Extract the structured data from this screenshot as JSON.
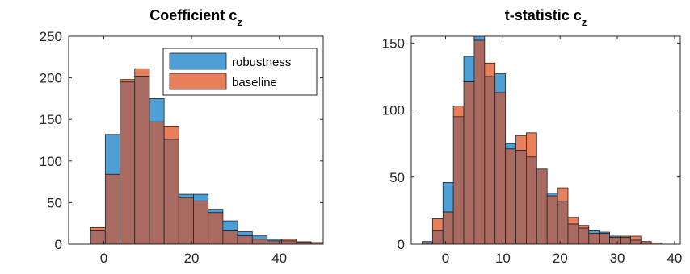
{
  "chart_data": [
    {
      "type": "bar",
      "title": "Coefficient c",
      "title_subscript": "z",
      "xlim": [
        -8,
        50
      ],
      "ylim": [
        0,
        250
      ],
      "xticks": [
        0,
        20,
        40
      ],
      "yticks": [
        0,
        50,
        100,
        150,
        200,
        250
      ],
      "xticklabels": [
        "0",
        "20",
        "40"
      ],
      "yticklabels": [
        "0",
        "50",
        "100",
        "150",
        "200",
        "250"
      ],
      "bin_start": -3,
      "bin_width": 3.35,
      "legend": {
        "position": "top-right",
        "entries": [
          "robustness",
          "baseline"
        ]
      },
      "series": [
        {
          "name": "robustness",
          "color": "#4d9fd6",
          "values": [
            16,
            132,
            195,
            202,
            175,
            126,
            60,
            60,
            42,
            28,
            15,
            10,
            6,
            4,
            2,
            2,
            3,
            3
          ]
        },
        {
          "name": "baseline",
          "color": "#e77f5a",
          "values": [
            20,
            84,
            198,
            211,
            147,
            142,
            56,
            52,
            38,
            16,
            10,
            6,
            4,
            6,
            3,
            2,
            5,
            1
          ]
        }
      ],
      "overlap_color": "#a86a61"
    },
    {
      "type": "bar",
      "title": "t-statistic c",
      "title_subscript": "z",
      "xlim": [
        -6,
        41
      ],
      "ylim": [
        0,
        155
      ],
      "xticks": [
        0,
        10,
        20,
        30,
        40
      ],
      "yticks": [
        0,
        50,
        100,
        150
      ],
      "xticklabels": [
        "0",
        "10",
        "20",
        "30",
        "40"
      ],
      "yticklabels": [
        "0",
        "50",
        "100",
        "150"
      ],
      "bin_start": -4.1,
      "bin_width": 1.82,
      "series": [
        {
          "name": "robustness",
          "color": "#4d9fd6",
          "values": [
            2,
            10,
            46,
            95,
            140,
            155,
            125,
            127,
            75,
            70,
            65,
            56,
            38,
            32,
            15,
            12,
            10,
            9,
            6,
            5,
            3,
            2,
            0
          ]
        },
        {
          "name": "baseline",
          "color": "#e77f5a",
          "values": [
            1,
            19,
            24,
            103,
            121,
            152,
            135,
            113,
            71,
            81,
            83,
            56,
            36,
            42,
            20,
            14,
            8,
            8,
            5,
            6,
            6,
            2,
            1
          ]
        }
      ],
      "overlap_color": "#a86a61"
    }
  ]
}
